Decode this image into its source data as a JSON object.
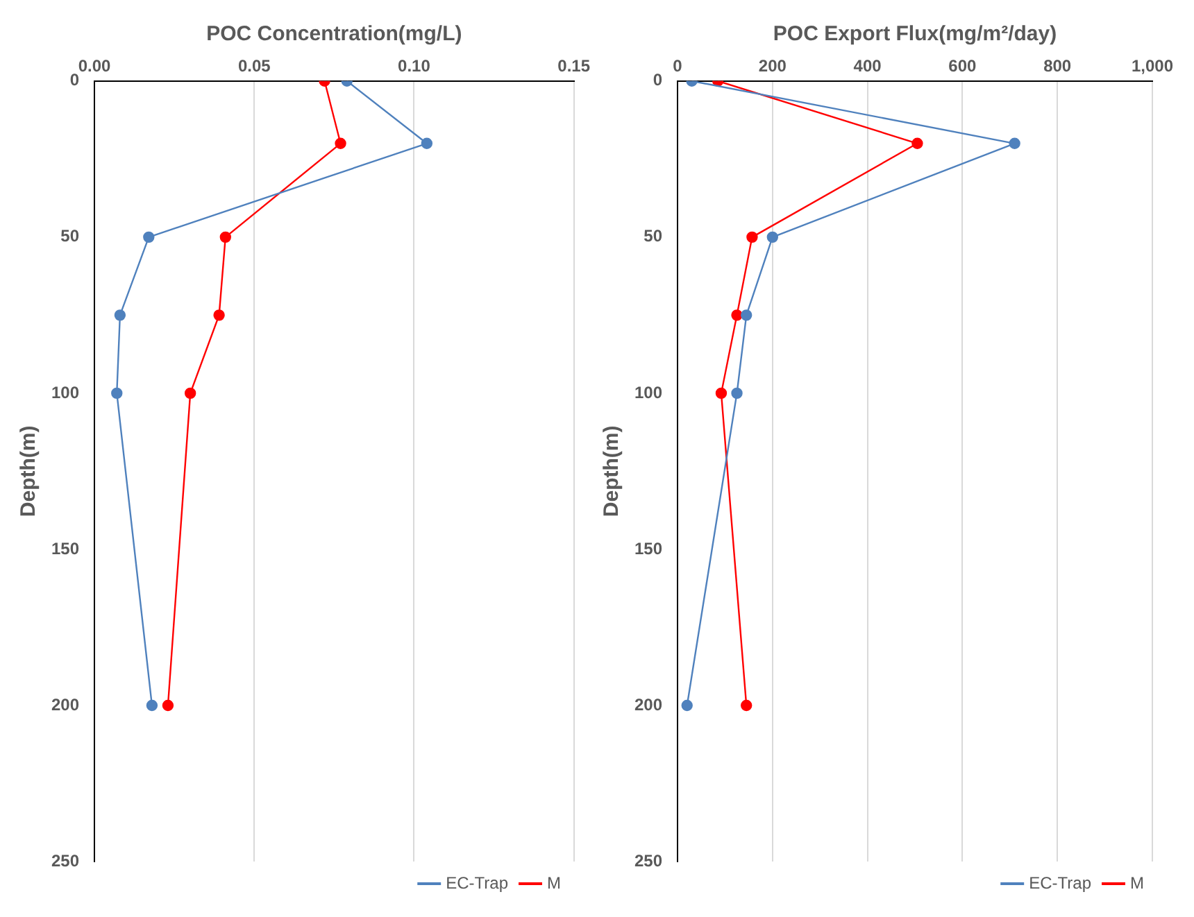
{
  "chart_data": [
    {
      "type": "line",
      "xlabel": "POC Concentration(mg/L)",
      "ylabel": "Depth(m)",
      "xlim": [
        0,
        0.15
      ],
      "xticks": [
        {
          "value": 0,
          "label": "0.00"
        },
        {
          "value": 0.05,
          "label": "0.05"
        },
        {
          "value": 0.1,
          "label": "0.10"
        },
        {
          "value": 0.15,
          "label": "0.15"
        }
      ],
      "ylim": [
        250,
        0
      ],
      "yticks": [
        0,
        50,
        100,
        150,
        200,
        250
      ],
      "grid": "x",
      "legend": "bottom right",
      "marker": "circle",
      "line_style": "solid",
      "series": [
        {
          "name": "EC-Trap",
          "color": "#4f81bd",
          "x": [
            0.079,
            0.104,
            0.017,
            0.008,
            0.007,
            0.018
          ],
          "values": [
            0,
            20,
            50,
            75,
            100,
            200
          ]
        },
        {
          "name": "M",
          "color": "#ff0000",
          "x": [
            0.072,
            0.077,
            0.041,
            0.039,
            0.03,
            0.023
          ],
          "values": [
            0,
            20,
            50,
            75,
            100,
            200
          ]
        }
      ]
    },
    {
      "type": "line",
      "xlabel": "POC Export Flux(mg/m²/day)",
      "ylabel": "Depth(m)",
      "xlim": [
        0,
        1000
      ],
      "xticks": [
        0,
        200,
        400,
        600,
        800,
        {
          "value": 1000,
          "label": "1,000"
        }
      ],
      "ylim": [
        250,
        0
      ],
      "yticks": [
        0,
        50,
        100,
        150,
        200,
        250
      ],
      "grid": "x",
      "legend": "bottom right",
      "marker": "circle",
      "line_style": "solid",
      "series": [
        {
          "name": "EC-Trap",
          "color": "#4f81bd",
          "x": [
            30,
            710,
            200,
            145,
            125,
            20
          ],
          "values": [
            0,
            20,
            50,
            75,
            100,
            200
          ]
        },
        {
          "name": "M",
          "color": "#ff0000",
          "x": [
            85,
            505,
            157,
            125,
            92,
            145
          ],
          "values": [
            0,
            20,
            50,
            75,
            100,
            200
          ]
        }
      ]
    }
  ]
}
